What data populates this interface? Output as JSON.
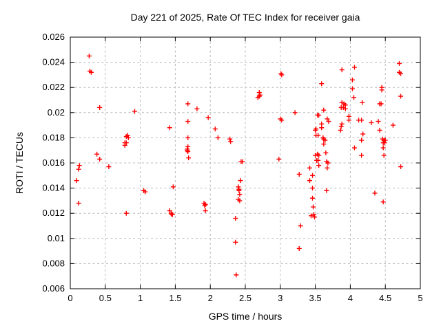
{
  "chart_data": {
    "type": "scatter",
    "title": "Day 221 of 2025, Rate Of TEC Index for receiver gaia",
    "xlabel": "GPS time / hours",
    "ylabel": "ROTI / TECUs",
    "xlim": [
      0,
      5
    ],
    "ylim": [
      0.006,
      0.026
    ],
    "x_ticks": {
      "values": [
        0,
        0.5,
        1,
        1.5,
        2,
        2.5,
        3,
        3.5,
        4,
        4.5,
        5
      ],
      "labels": [
        "0",
        "0.5",
        "1",
        "1.5",
        "2",
        "2.5",
        "3",
        "3.5",
        "4",
        "4.5",
        "5"
      ]
    },
    "y_ticks": {
      "values": [
        0.006,
        0.008,
        0.01,
        0.012,
        0.014,
        0.016,
        0.018,
        0.02,
        0.022,
        0.024,
        0.026
      ],
      "labels": [
        "0.006",
        "0.008",
        "0.01",
        "0.012",
        "0.014",
        "0.016",
        "0.018",
        "0.02",
        "0.022",
        "0.024",
        "0.026"
      ]
    },
    "grid": "dashed",
    "legend": "none",
    "marker": "plus",
    "colors": {
      "marker": "#ff0000",
      "grid": "#b8b8b8",
      "axis": "#000000",
      "text": "#000000"
    },
    "series": [
      {
        "name": "ROTI",
        "points": [
          [
            0.09,
            0.0146
          ],
          [
            0.12,
            0.0155
          ],
          [
            0.13,
            0.0158
          ],
          [
            0.12,
            0.0128
          ],
          [
            0.27,
            0.0245
          ],
          [
            0.28,
            0.0233
          ],
          [
            0.3,
            0.0232
          ],
          [
            0.42,
            0.0204
          ],
          [
            0.38,
            0.0167
          ],
          [
            0.42,
            0.0163
          ],
          [
            0.55,
            0.0157
          ],
          [
            0.78,
            0.0176
          ],
          [
            0.78,
            0.0174
          ],
          [
            0.8,
            0.0181
          ],
          [
            0.8,
            0.0176
          ],
          [
            0.82,
            0.0182
          ],
          [
            0.83,
            0.018
          ],
          [
            0.92,
            0.0201
          ],
          [
            0.8,
            0.012
          ],
          [
            1.05,
            0.0138
          ],
          [
            1.07,
            0.0137
          ],
          [
            1.42,
            0.0188
          ],
          [
            1.47,
            0.0141
          ],
          [
            1.42,
            0.0122
          ],
          [
            1.44,
            0.012
          ],
          [
            1.45,
            0.0119
          ],
          [
            1.46,
            0.0119
          ],
          [
            1.68,
            0.0207
          ],
          [
            1.68,
            0.0193
          ],
          [
            1.68,
            0.018
          ],
          [
            1.68,
            0.0173
          ],
          [
            1.67,
            0.0171
          ],
          [
            1.67,
            0.017
          ],
          [
            1.68,
            0.0169
          ],
          [
            1.69,
            0.0164
          ],
          [
            1.81,
            0.0203
          ],
          [
            1.97,
            0.0196
          ],
          [
            2.07,
            0.0187
          ],
          [
            1.91,
            0.0128
          ],
          [
            1.93,
            0.0127
          ],
          [
            1.92,
            0.0126
          ],
          [
            1.93,
            0.0122
          ],
          [
            2.11,
            0.018
          ],
          [
            2.28,
            0.0179
          ],
          [
            2.29,
            0.0177
          ],
          [
            2.36,
            0.0116
          ],
          [
            2.36,
            0.0097
          ],
          [
            2.37,
            0.0071
          ],
          [
            2.4,
            0.0141
          ],
          [
            2.41,
            0.0139
          ],
          [
            2.41,
            0.0138
          ],
          [
            2.42,
            0.0135
          ],
          [
            2.4,
            0.0131
          ],
          [
            2.42,
            0.013
          ],
          [
            2.43,
            0.0146
          ],
          [
            2.44,
            0.0161
          ],
          [
            2.46,
            0.0161
          ],
          [
            2.7,
            0.0216
          ],
          [
            2.71,
            0.0214
          ],
          [
            2.68,
            0.0212
          ],
          [
            2.7,
            0.0213
          ],
          [
            2.98,
            0.0163
          ],
          [
            3.01,
            0.0231
          ],
          [
            3.02,
            0.023
          ],
          [
            3.0,
            0.0195
          ],
          [
            3.02,
            0.0194
          ],
          [
            3.21,
            0.02
          ],
          [
            3.27,
            0.0151
          ],
          [
            3.29,
            0.011
          ],
          [
            3.27,
            0.0092
          ],
          [
            3.42,
            0.0156
          ],
          [
            3.46,
            0.015
          ],
          [
            3.42,
            0.0146
          ],
          [
            3.46,
            0.014
          ],
          [
            3.66,
            0.0138
          ],
          [
            3.46,
            0.0132
          ],
          [
            3.47,
            0.0125
          ],
          [
            3.44,
            0.0118
          ],
          [
            3.48,
            0.0119
          ],
          [
            3.49,
            0.0117
          ],
          [
            3.54,
            0.0162
          ],
          [
            3.55,
            0.0158
          ],
          [
            3.66,
            0.0161
          ],
          [
            3.68,
            0.016
          ],
          [
            3.67,
            0.0156
          ],
          [
            3.59,
            0.0223
          ],
          [
            3.62,
            0.0202
          ],
          [
            3.55,
            0.0198
          ],
          [
            3.53,
            0.0198
          ],
          [
            3.67,
            0.0195
          ],
          [
            3.69,
            0.0193
          ],
          [
            3.59,
            0.0191
          ],
          [
            3.51,
            0.0187
          ],
          [
            3.59,
            0.0188
          ],
          [
            3.5,
            0.0186
          ],
          [
            3.54,
            0.0182
          ],
          [
            3.51,
            0.0182
          ],
          [
            3.61,
            0.018
          ],
          [
            3.62,
            0.0179
          ],
          [
            3.64,
            0.0178
          ],
          [
            3.62,
            0.0175
          ],
          [
            3.65,
            0.0168
          ],
          [
            3.53,
            0.0167
          ],
          [
            3.5,
            0.0166
          ],
          [
            3.55,
            0.0166
          ],
          [
            3.52,
            0.0162
          ],
          [
            3.88,
            0.0234
          ],
          [
            3.88,
            0.0208
          ],
          [
            3.91,
            0.0207
          ],
          [
            3.93,
            0.0206
          ],
          [
            3.9,
            0.0204
          ],
          [
            3.93,
            0.0203
          ],
          [
            3.87,
            0.0204
          ],
          [
            3.88,
            0.0191
          ],
          [
            3.87,
            0.0189
          ],
          [
            3.86,
            0.0186
          ],
          [
            3.98,
            0.0197
          ],
          [
            3.98,
            0.0194
          ],
          [
            4.06,
            0.0236
          ],
          [
            4.03,
            0.0226
          ],
          [
            4.03,
            0.0219
          ],
          [
            4.05,
            0.0212
          ],
          [
            4.17,
            0.0208
          ],
          [
            4.12,
            0.0194
          ],
          [
            4.16,
            0.0194
          ],
          [
            4.18,
            0.0183
          ],
          [
            4.16,
            0.0178
          ],
          [
            4.16,
            0.0166
          ],
          [
            4.06,
            0.0172
          ],
          [
            4.3,
            0.0192
          ],
          [
            4.35,
            0.0136
          ],
          [
            4.4,
            0.0193
          ],
          [
            4.42,
            0.0186
          ],
          [
            4.42,
            0.0207
          ],
          [
            4.44,
            0.0207
          ],
          [
            4.45,
            0.022
          ],
          [
            4.45,
            0.0218
          ],
          [
            4.46,
            0.0179
          ],
          [
            4.48,
            0.0178
          ],
          [
            4.5,
            0.0178
          ],
          [
            4.47,
            0.0176
          ],
          [
            4.49,
            0.0176
          ],
          [
            4.47,
            0.0172
          ],
          [
            4.48,
            0.0166
          ],
          [
            4.47,
            0.0129
          ],
          [
            4.61,
            0.019
          ],
          [
            4.7,
            0.0239
          ],
          [
            4.7,
            0.0232
          ],
          [
            4.72,
            0.0231
          ],
          [
            4.72,
            0.0213
          ],
          [
            4.72,
            0.0157
          ]
        ]
      }
    ]
  }
}
